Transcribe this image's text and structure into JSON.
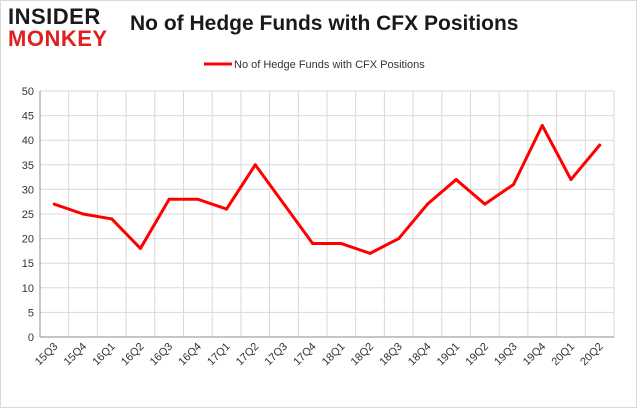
{
  "logo": {
    "line1": "INSIDER",
    "line2": "MONKEY"
  },
  "chart_data": {
    "type": "line",
    "title": "No of Hedge Funds with CFX Positions",
    "categories": [
      "15Q3",
      "15Q4",
      "16Q1",
      "16Q2",
      "16Q3",
      "16Q4",
      "17Q1",
      "17Q2",
      "17Q3",
      "17Q4",
      "18Q1",
      "18Q2",
      "18Q3",
      "18Q4",
      "19Q1",
      "19Q2",
      "19Q3",
      "19Q4",
      "20Q1",
      "20Q2"
    ],
    "series": [
      {
        "name": "No of Hedge Funds with CFX Positions",
        "values": [
          27,
          25,
          24,
          18,
          28,
          28,
          26,
          35,
          27,
          19,
          19,
          17,
          20,
          27,
          32,
          27,
          31,
          43,
          32,
          39
        ],
        "color": "#ff0000"
      }
    ],
    "ylim": [
      0,
      50
    ],
    "yticks": [
      0,
      5,
      10,
      15,
      20,
      25,
      30,
      35,
      40,
      45,
      50
    ],
    "grid": true,
    "legend": "top-center",
    "xlabel": "",
    "ylabel": ""
  }
}
